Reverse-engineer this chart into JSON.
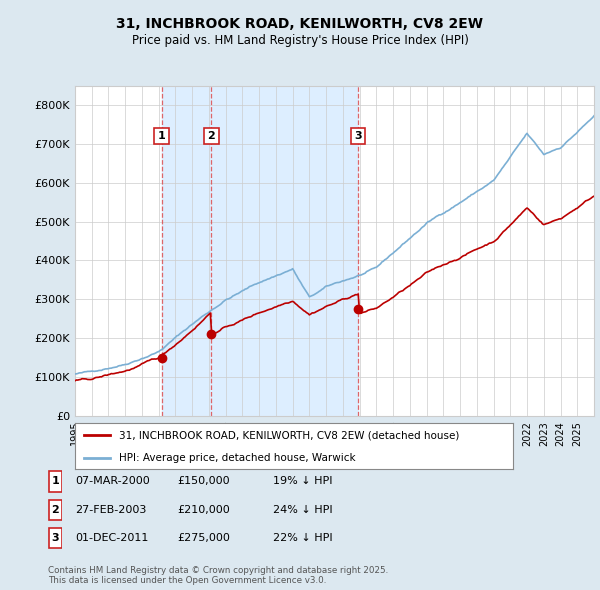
{
  "title": "31, INCHBROOK ROAD, KENILWORTH, CV8 2EW",
  "subtitle": "Price paid vs. HM Land Registry's House Price Index (HPI)",
  "property_label": "31, INCHBROOK ROAD, KENILWORTH, CV8 2EW (detached house)",
  "hpi_label": "HPI: Average price, detached house, Warwick",
  "transactions": [
    {
      "num": 1,
      "date": "07-MAR-2000",
      "price": "£150,000",
      "hpi_diff": "19% ↓ HPI",
      "year": 2000.17,
      "price_val": 150000
    },
    {
      "num": 2,
      "date": "27-FEB-2003",
      "price": "£210,000",
      "hpi_diff": "24% ↓ HPI",
      "year": 2003.15,
      "price_val": 210000
    },
    {
      "num": 3,
      "date": "01-DEC-2011",
      "price": "£275,000",
      "hpi_diff": "22% ↓ HPI",
      "year": 2011.92,
      "price_val": 275000
    }
  ],
  "footnote_line1": "Contains HM Land Registry data © Crown copyright and database right 2025.",
  "footnote_line2": "This data is licensed under the Open Government Licence v3.0.",
  "ylim": [
    0,
    850000
  ],
  "yticks": [
    0,
    100000,
    200000,
    300000,
    400000,
    500000,
    600000,
    700000,
    800000
  ],
  "ytick_labels": [
    "£0",
    "£100K",
    "£200K",
    "£300K",
    "£400K",
    "£500K",
    "£600K",
    "£700K",
    "£800K"
  ],
  "xmin": 1995,
  "xmax": 2026,
  "property_color": "#bb0000",
  "hpi_color": "#7bafd4",
  "shade_color": "#ddeeff",
  "background_color": "#dce8f0",
  "plot_bg_color": "#ffffff",
  "grid_color": "#cccccc",
  "dashed_color": "#dd4444",
  "label_box_color": "#cc2222"
}
